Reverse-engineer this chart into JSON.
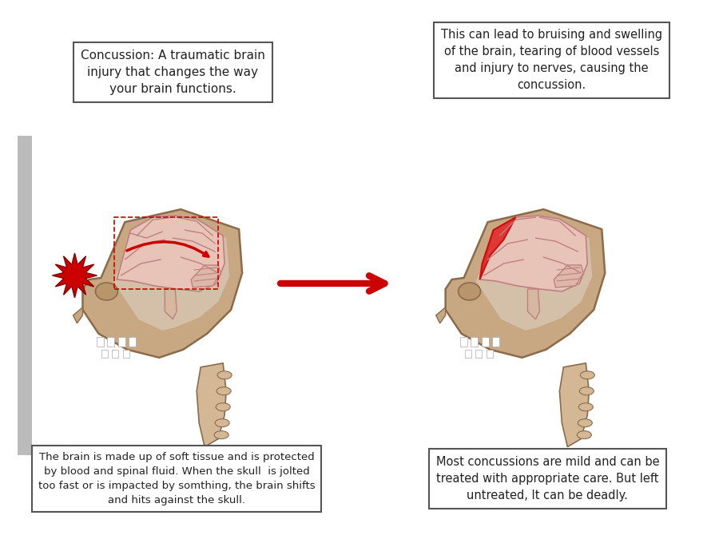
{
  "bg_color": "#ffffff",
  "text_box1": "Concussion: A traumatic brain\ninjury that changes the way\nyour brain functions.",
  "text_box2": "This can lead to bruising and swelling\nof the brain, tearing of blood vessels\nand injury to nerves, causing the\nconcussion.",
  "text_box3": "The brain is made up of soft tissue and is protected\nby blood and spinal fluid. When the skull  is jolted\ntoo fast or is impacted by somthing, the brain shifts\nand hits against the skull.",
  "text_box4": "Most concussions are mild and can be\ntreated with appropriate care. But left\nuntreated, It can be deadly.",
  "skull_color": "#c8a882",
  "brain_color": "#e8c4b8",
  "spine_color": "#d4b896",
  "impact_color": "#cc0000",
  "arrow_color": "#cc0000",
  "box_edge_color": "#555555",
  "text_color": "#222222",
  "gray_bar_color": "#bbbbbb"
}
